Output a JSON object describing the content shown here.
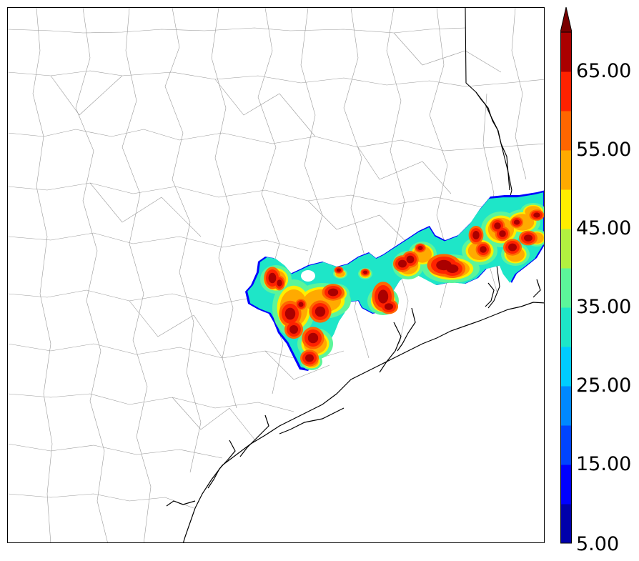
{
  "colorbar": {
    "levels": [
      {
        "color": "#0000aa"
      },
      {
        "color": "#0000ff"
      },
      {
        "color": "#0044ff"
      },
      {
        "color": "#0088ff"
      },
      {
        "color": "#00ccff"
      },
      {
        "color": "#1ee6c8"
      },
      {
        "color": "#5cf59a"
      },
      {
        "color": "#b2f040"
      },
      {
        "color": "#ffee00"
      },
      {
        "color": "#ffaa00"
      },
      {
        "color": "#ff6600"
      },
      {
        "color": "#ff2200"
      },
      {
        "color": "#aa0000"
      }
    ],
    "extend_color": "#7a0000",
    "tick_labels": [
      "5.00",
      "15.00",
      "25.00",
      "35.00",
      "45.00",
      "55.00",
      "65.00"
    ],
    "tick_values": [
      5,
      15,
      25,
      35,
      45,
      55,
      65
    ],
    "min": 5,
    "max": 70
  },
  "map": {
    "background": "#ffffff",
    "county_line_color": "#999999",
    "coast_color": "#000000"
  }
}
